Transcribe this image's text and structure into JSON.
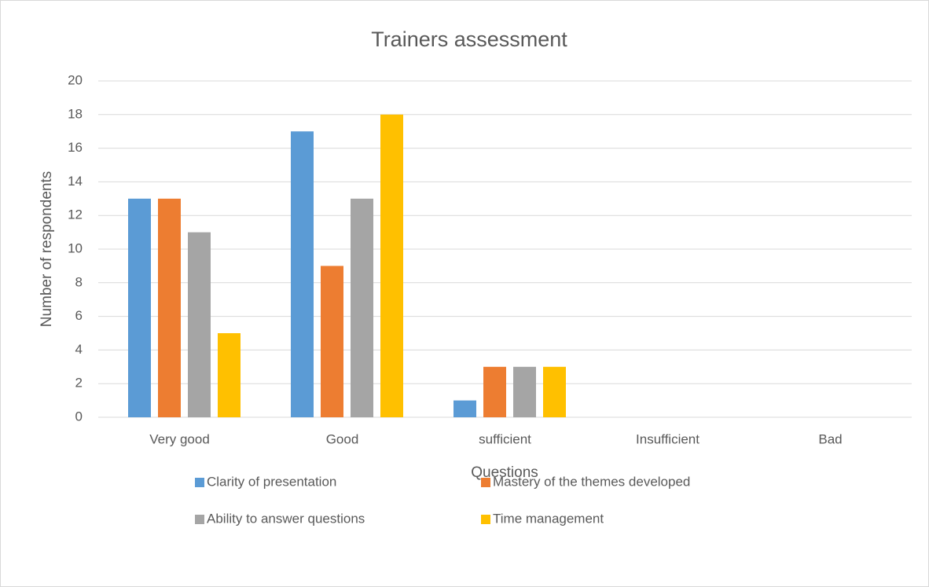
{
  "chart_data": {
    "type": "bar",
    "title": "Trainers assessment",
    "x_label": "Questions",
    "y_label": "Number of  respondents",
    "categories": [
      "Very good",
      "Good",
      "sufficient",
      "Insufficient",
      "Bad"
    ],
    "series": [
      {
        "name": "Clarity of presentation",
        "color": "#5b9bd5",
        "values": [
          13,
          17,
          1,
          0,
          0
        ]
      },
      {
        "name": "Mastery of the themes developed",
        "color": "#ed7d31",
        "values": [
          13,
          9,
          3,
          0,
          0
        ]
      },
      {
        "name": "Ability to answer questions",
        "color": "#a5a5a5",
        "values": [
          11,
          13,
          3,
          0,
          0
        ]
      },
      {
        "name": "Time management",
        "color": "#ffc000",
        "values": [
          5,
          18,
          3,
          0,
          0
        ]
      }
    ],
    "ylim": [
      0,
      20
    ],
    "yticks": [
      0,
      2,
      4,
      6,
      8,
      10,
      12,
      14,
      16,
      18,
      20
    ],
    "grid": true,
    "legend": "bottom"
  }
}
